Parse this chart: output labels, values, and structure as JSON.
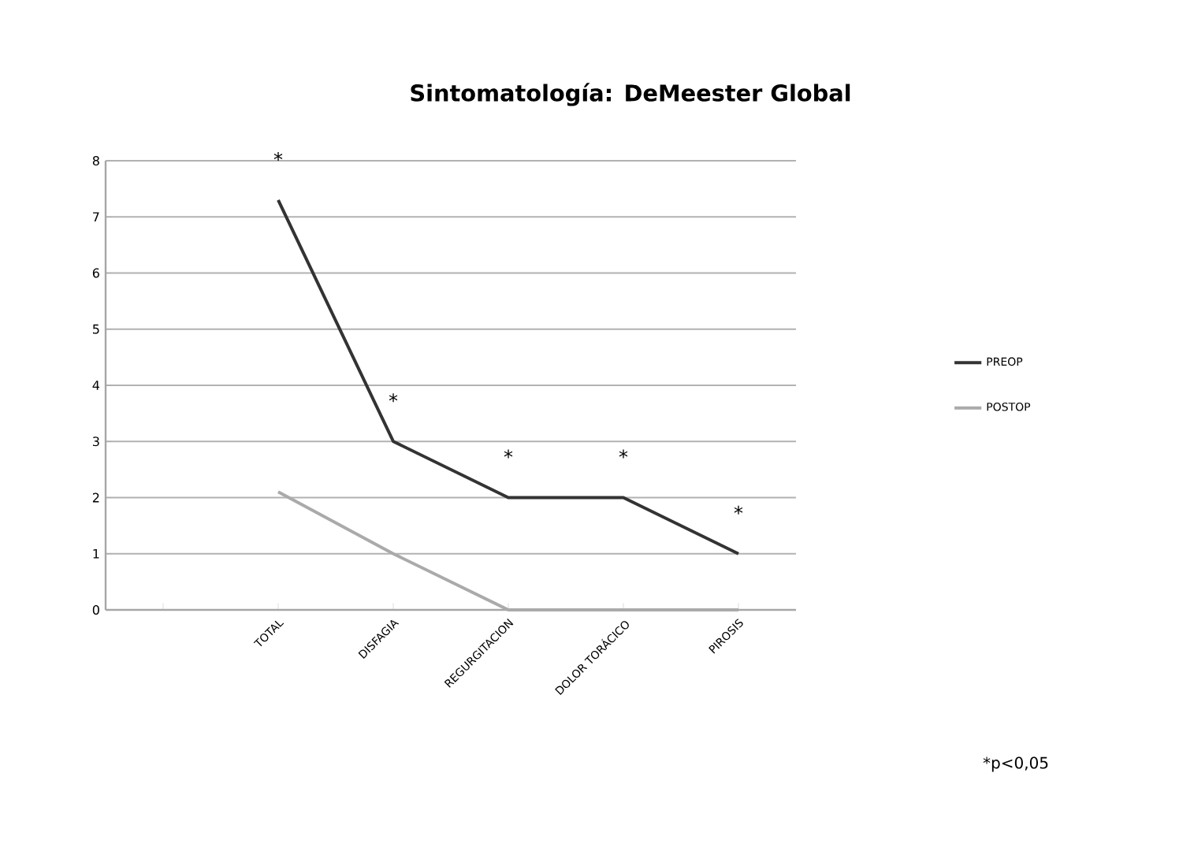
{
  "chart_data": {
    "type": "line",
    "title": "Sintomatología: DeMeester Global",
    "categories": [
      null,
      "TOTAL",
      "DISFAGIA",
      "REGURGITACION",
      "DOLOR TORÁCICO",
      "PIROSIS"
    ],
    "series": [
      {
        "name": "PREOP",
        "color": "#333333",
        "values": [
          null,
          7.3,
          3,
          2,
          2,
          1
        ]
      },
      {
        "name": "POSTOP",
        "color": "#aaaaaa",
        "values": [
          null,
          2.1,
          1,
          0,
          0,
          0
        ]
      }
    ],
    "ylim": [
      0,
      8
    ],
    "yticks": [
      0,
      1,
      2,
      3,
      4,
      5,
      6,
      7,
      8
    ],
    "grid": "y",
    "legend": "right",
    "marker": "none",
    "annotations": [
      "*",
      "*",
      "*",
      "*",
      "*",
      "*p<0,05"
    ]
  }
}
